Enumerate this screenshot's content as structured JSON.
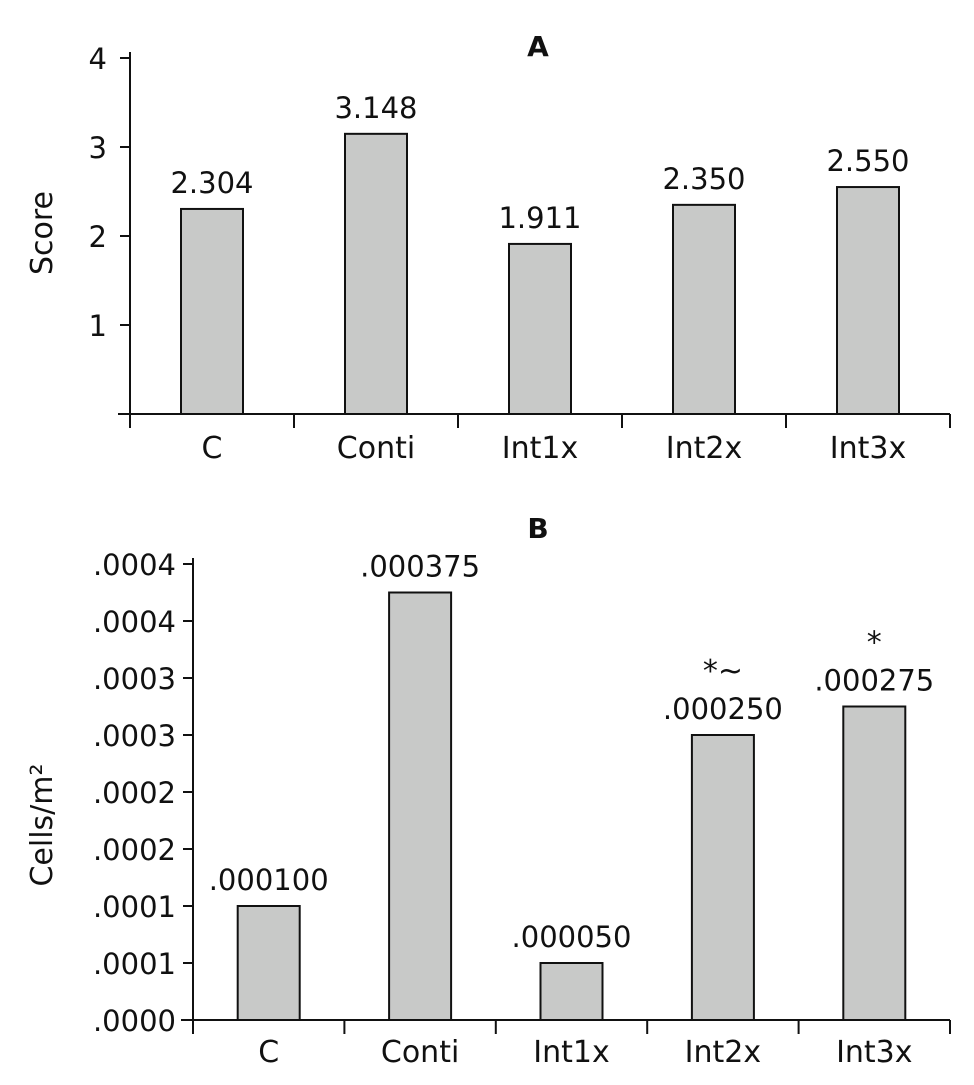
{
  "chart_data": [
    {
      "type": "bar",
      "title": "A",
      "xlabel": "",
      "ylabel": "Score",
      "ylim": [
        0,
        4
      ],
      "yticks": [
        1,
        2,
        3,
        4
      ],
      "ytick_labels": [
        "1",
        "2",
        "3",
        "4"
      ],
      "categories": [
        "C",
        "Conti",
        "Int1x",
        "Int2x",
        "Int3x"
      ],
      "values": [
        2.304,
        3.148,
        1.911,
        2.35,
        2.55
      ],
      "value_labels": [
        "2.304",
        "3.148",
        "1.911",
        "2.350",
        "2.550"
      ],
      "annotations": [
        "",
        "",
        "",
        "",
        ""
      ],
      "grid": false,
      "bar_color": "#c8c9c8"
    },
    {
      "type": "bar",
      "title": "B",
      "xlabel": "",
      "ylabel": "Cells/m²",
      "ylim": [
        0,
        0.0004
      ],
      "yticks": [
        0,
        5e-05,
        0.0001,
        0.00015,
        0.0002,
        0.00025,
        0.0003,
        0.00035,
        0.0004
      ],
      "ytick_labels": [
        ".0000",
        ".0001",
        ".0001",
        ".0002",
        ".0002",
        ".0003",
        ".0003",
        ".0004",
        ".0004"
      ],
      "categories": [
        "C",
        "Conti",
        "Int1x",
        "Int2x",
        "Int3x"
      ],
      "values": [
        0.0001,
        0.000375,
        5e-05,
        0.00025,
        0.000275
      ],
      "value_labels": [
        ".000100",
        ".000375",
        ".000050",
        ".000250",
        ".000275"
      ],
      "annotations": [
        "",
        "",
        "",
        "*~",
        "*"
      ],
      "grid": false,
      "bar_color": "#c8c9c8"
    }
  ]
}
